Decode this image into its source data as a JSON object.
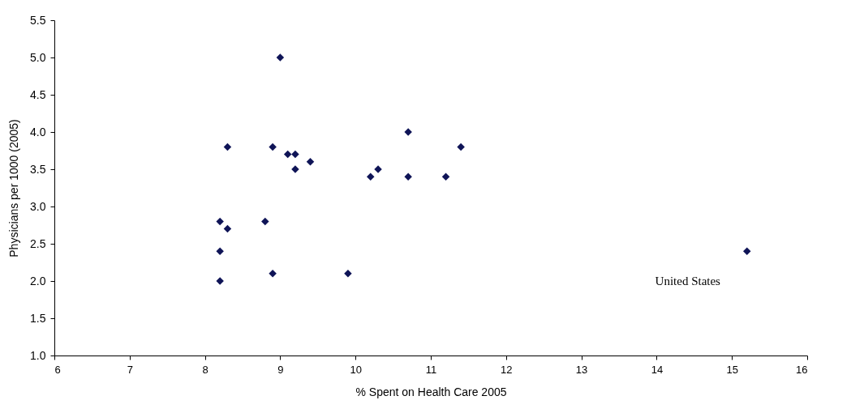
{
  "chart_data": {
    "type": "scatter",
    "xlabel": "% Spent on Health Care 2005",
    "ylabel": "Physicians per 1000 (2005)",
    "x": [
      9.0,
      8.3,
      8.9,
      9.1,
      9.2,
      9.4,
      9.2,
      10.7,
      11.4,
      10.3,
      10.2,
      10.7,
      11.2,
      8.2,
      8.3,
      8.8,
      8.2,
      8.2,
      8.9,
      9.9,
      15.2
    ],
    "series": [
      {
        "color": "#0f1457",
        "values": [
          5.0,
          3.8,
          3.8,
          3.7,
          3.7,
          3.6,
          3.5,
          4.0,
          3.8,
          3.5,
          3.4,
          3.4,
          3.4,
          2.8,
          2.7,
          2.8,
          2.4,
          2.0,
          2.1,
          2.1,
          2.4
        ]
      }
    ],
    "xlim": [
      6,
      16
    ],
    "xticks": [
      6,
      7,
      8,
      9,
      10,
      11,
      12,
      13,
      14,
      15,
      16
    ],
    "ylim": [
      1,
      5.5
    ],
    "yticks": [
      {
        "value": 1,
        "label": "1.0"
      },
      {
        "value": 1.5,
        "label": "1.5"
      },
      {
        "value": 2,
        "label": "2.0"
      },
      {
        "value": 2.5,
        "label": "2.5"
      },
      {
        "value": 3,
        "label": "3.0"
      },
      {
        "value": 3.5,
        "label": "3.5"
      },
      {
        "value": 4,
        "label": "4.0"
      },
      {
        "value": 4.5,
        "label": "4.5"
      },
      {
        "value": 5,
        "label": "5.0"
      },
      {
        "value": 5.5,
        "label": "5.5"
      }
    ],
    "annotations": [
      {
        "text": "United States",
        "x": 15.2,
        "y": 2.4
      }
    ],
    "marker": "diamond",
    "grid": false
  }
}
